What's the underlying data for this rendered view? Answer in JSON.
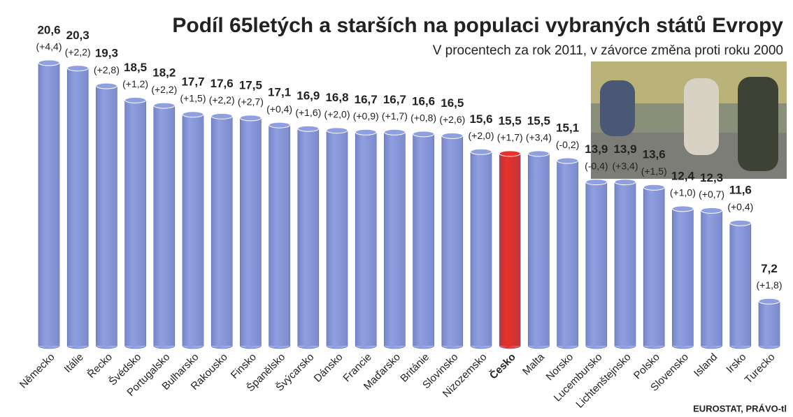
{
  "chart_data": {
    "type": "bar",
    "title": "Podíl 65letých a starších na populaci vybraných států Evropy",
    "subtitle": "V procentech za rok 2011, v závorce změna proti roku 2000",
    "source": "EUROSTAT, PRÁVO-tl",
    "categories": [
      "Německo",
      "Itálie",
      "Řecko",
      "Švédsko",
      "Portugalsko",
      "Bulharsko",
      "Rakousko",
      "Finsko",
      "Španělsko",
      "Švýcarsko",
      "Dánsko",
      "Francie",
      "Maďarsko",
      "Británie",
      "Slovinsko",
      "Nizozemsko",
      "Česko",
      "Malta",
      "Norsko",
      "Lucembursko",
      "Lichtenštejnsko",
      "Polsko",
      "Slovensko",
      "Island",
      "Irsko",
      "Turecko"
    ],
    "values": [
      20.6,
      20.3,
      19.3,
      18.5,
      18.2,
      17.7,
      17.6,
      17.5,
      17.1,
      16.9,
      16.8,
      16.7,
      16.7,
      16.6,
      16.5,
      15.6,
      15.5,
      15.5,
      15.1,
      13.9,
      13.9,
      13.6,
      12.4,
      12.3,
      11.6,
      7.2
    ],
    "value_labels": [
      "20,6",
      "20,3",
      "19,3",
      "18,5",
      "18,2",
      "17,7",
      "17,6",
      "17,5",
      "17,1",
      "16,9",
      "16,8",
      "16,7",
      "16,7",
      "16,6",
      "16,5",
      "15,6",
      "15,5",
      "15,5",
      "15,1",
      "13,9",
      "13,9",
      "13,6",
      "12,4",
      "12,3",
      "11,6",
      "7,2"
    ],
    "change_labels": [
      "(+4,4)",
      "(+2,2)",
      "(+2,8)",
      "(+1,2)",
      "(+2,2)",
      "(+1,5)",
      "(+2,2)",
      "(+2,7)",
      "(+0,4)",
      "(+1,6)",
      "(+2,0)",
      "(+0,9)",
      "(+1,7)",
      "(+0,8)",
      "(+2,6)",
      "(+2,0)",
      "(+1,7)",
      "(+3,4)",
      "(-0,2)",
      "(-0,4)",
      "(+3,4)",
      "(+1,5)",
      "(+1,0)",
      "(+0,7)",
      "(+0,4)",
      "(+1,8)"
    ],
    "colors": [
      "#8f9fe0",
      "#8f9fe0",
      "#8f9fe0",
      "#8f9fe0",
      "#8f9fe0",
      "#8f9fe0",
      "#8f9fe0",
      "#8f9fe0",
      "#8f9fe0",
      "#8f9fe0",
      "#8f9fe0",
      "#8f9fe0",
      "#8f9fe0",
      "#8f9fe0",
      "#8f9fe0",
      "#8f9fe0",
      "#e8322a",
      "#8f9fe0",
      "#8f9fe0",
      "#8f9fe0",
      "#8f9fe0",
      "#8f9fe0",
      "#8f9fe0",
      "#8f9fe0",
      "#8f9fe0",
      "#8f9fe0"
    ],
    "ylim": [
      4.7,
      21.5
    ]
  }
}
